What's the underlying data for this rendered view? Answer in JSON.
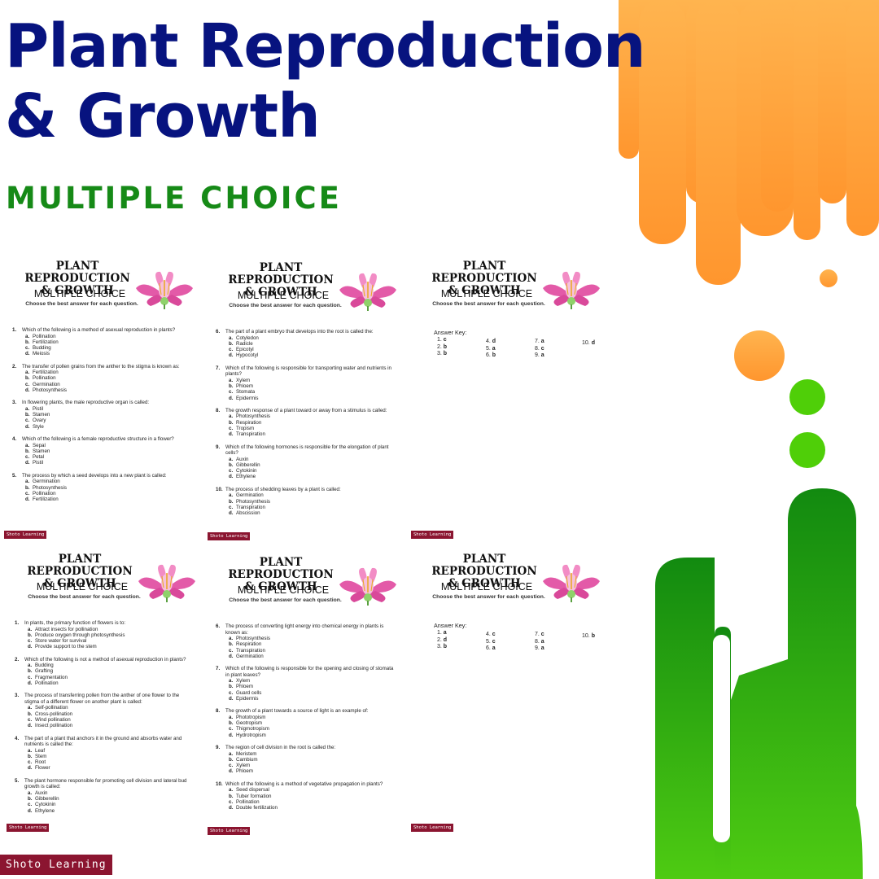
{
  "header": {
    "title_line1": "Plant Reproduction",
    "title_line2": "& Growth",
    "subtitle": "MULTIPLE CHOICE"
  },
  "worksheet": {
    "title_line1": "PLANT REPRODUCTION",
    "title_line2": "& GROWTH",
    "subtitle": "MULTIPLE CHOICE",
    "instruction": "Choose the best answer for each question.",
    "option_letters": [
      "a.",
      "b.",
      "c.",
      "d."
    ],
    "answer_key_label": "Answer Key:",
    "brand": "Shoto Learning"
  },
  "brand": "Shoto Learning",
  "pages": [
    {
      "questions": [
        {
          "num": "1.",
          "text": "Which of the following is a method of asexual reproduction in plants?",
          "options": [
            "Pollination",
            "Fertilization",
            "Budding",
            "Meiosis"
          ]
        },
        {
          "num": "2.",
          "text": "The transfer of pollen grains from the anther to the stigma is known as:",
          "options": [
            "Fertilization",
            "Pollination",
            "Germination",
            "Photosynthesis"
          ]
        },
        {
          "num": "3.",
          "text": "In flowering plants, the male reproductive organ is called:",
          "options": [
            "Pistil",
            "Stamen",
            "Ovary",
            "Style"
          ]
        },
        {
          "num": "4.",
          "text": "Which of the following is a female reproductive structure in a flower?",
          "options": [
            "Sepal",
            "Stamen",
            "Petal",
            "Pistil"
          ]
        },
        {
          "num": "5.",
          "text": "The process by which a seed develops into a new plant is called:",
          "options": [
            "Germination",
            "Photosynthesis",
            "Pollination",
            "Fertilization"
          ]
        }
      ]
    },
    {
      "questions": [
        {
          "num": "6.",
          "text": "The part of a plant embryo that develops into the root is called the:",
          "options": [
            "Cotyledon",
            "Radicle",
            "Epicotyl",
            "Hypocotyl"
          ]
        },
        {
          "num": "7.",
          "text": "Which of the following is responsible for transporting water and nutrients in plants?",
          "options": [
            "Xylem",
            "Phloem",
            "Stomata",
            "Epidermis"
          ]
        },
        {
          "num": "8.",
          "text": "The growth response of a plant toward or away from a stimulus is called:",
          "options": [
            "Photosynthesis",
            "Respiration",
            "Tropism",
            "Transpiration"
          ]
        },
        {
          "num": "9.",
          "text": "Which of the following hormones is responsible for the elongation of plant cells?",
          "options": [
            "Auxin",
            "Gibberellin",
            "Cytokinin",
            "Ethylene"
          ]
        },
        {
          "num": "10.",
          "text": "The process of shedding leaves by a plant is called:",
          "options": [
            "Germination",
            "Photosynthesis",
            "Transpiration",
            "Abscission"
          ]
        }
      ]
    },
    {
      "answers": [
        {
          "num": "1.",
          "letter": "c"
        },
        {
          "num": "2.",
          "letter": "b"
        },
        {
          "num": "3.",
          "letter": "b"
        },
        {
          "num": "4.",
          "letter": "d"
        },
        {
          "num": "5.",
          "letter": "a"
        },
        {
          "num": "6.",
          "letter": "b"
        },
        {
          "num": "7.",
          "letter": "a"
        },
        {
          "num": "8.",
          "letter": "c"
        },
        {
          "num": "9.",
          "letter": "a"
        },
        {
          "num": "10.",
          "letter": "d"
        }
      ]
    },
    {
      "questions": [
        {
          "num": "1.",
          "text": "In plants, the primary function of flowers is to:",
          "options": [
            "Attract insects for pollination",
            "Produce oxygen through photosynthesis",
            "Store water for survival",
            "Provide support to the stem"
          ]
        },
        {
          "num": "2.",
          "text": "Which of the following is not a method of asexual reproduction in plants?",
          "options": [
            "Budding",
            "Grafting",
            "Fragmentation",
            "Pollination"
          ]
        },
        {
          "num": "3.",
          "text": "The process of transferring pollen from the anther of one flower to the stigma of a different flower on another plant is called:",
          "options": [
            "Self-pollination",
            "Cross-pollination",
            "Wind pollination",
            "Insect pollination"
          ]
        },
        {
          "num": "4.",
          "text": "The part of a plant that anchors it in the ground and absorbs water and nutrients is called the:",
          "options": [
            "Leaf",
            "Stem",
            "Root",
            "Flower"
          ]
        },
        {
          "num": "5.",
          "text": "The plant hormone responsible for promoting cell division and lateral bud growth is called:",
          "options": [
            "Auxin",
            "Gibberellin",
            "Cytokinin",
            "Ethylene"
          ]
        }
      ]
    },
    {
      "questions": [
        {
          "num": "6.",
          "text": "The process of converting light energy into chemical energy in plants is known as:",
          "options": [
            "Photosynthesis",
            "Respiration",
            "Transpiration",
            "Germination"
          ]
        },
        {
          "num": "7.",
          "text": "Which of the following is responsible for the opening and closing of stomata in plant leaves?",
          "options": [
            "Xylem",
            "Phloem",
            "Guard cells",
            "Epidermis"
          ]
        },
        {
          "num": "8.",
          "text": "The growth of a plant towards a source of light is an example of:",
          "options": [
            "Phototropism",
            "Geotropism",
            "Thigmotropism",
            "Hydrotropism"
          ]
        },
        {
          "num": "9.",
          "text": "The region of cell division in the root is called the:",
          "options": [
            "Meristem",
            "Cambium",
            "Xylem",
            "Phloem"
          ]
        },
        {
          "num": "10.",
          "text": "Which of the following is a method of vegetative propagation in plants?",
          "options": [
            "Seed dispersal",
            "Tuber formation",
            "Pollination",
            "Double fertilization"
          ]
        }
      ]
    },
    {
      "answers": [
        {
          "num": "1.",
          "letter": "a"
        },
        {
          "num": "2.",
          "letter": "d"
        },
        {
          "num": "3.",
          "letter": "b"
        },
        {
          "num": "4.",
          "letter": "c"
        },
        {
          "num": "5.",
          "letter": "c"
        },
        {
          "num": "6.",
          "letter": "a"
        },
        {
          "num": "7.",
          "letter": "c"
        },
        {
          "num": "8.",
          "letter": "a"
        },
        {
          "num": "9.",
          "letter": "a"
        },
        {
          "num": "10.",
          "letter": "b"
        }
      ]
    }
  ]
}
